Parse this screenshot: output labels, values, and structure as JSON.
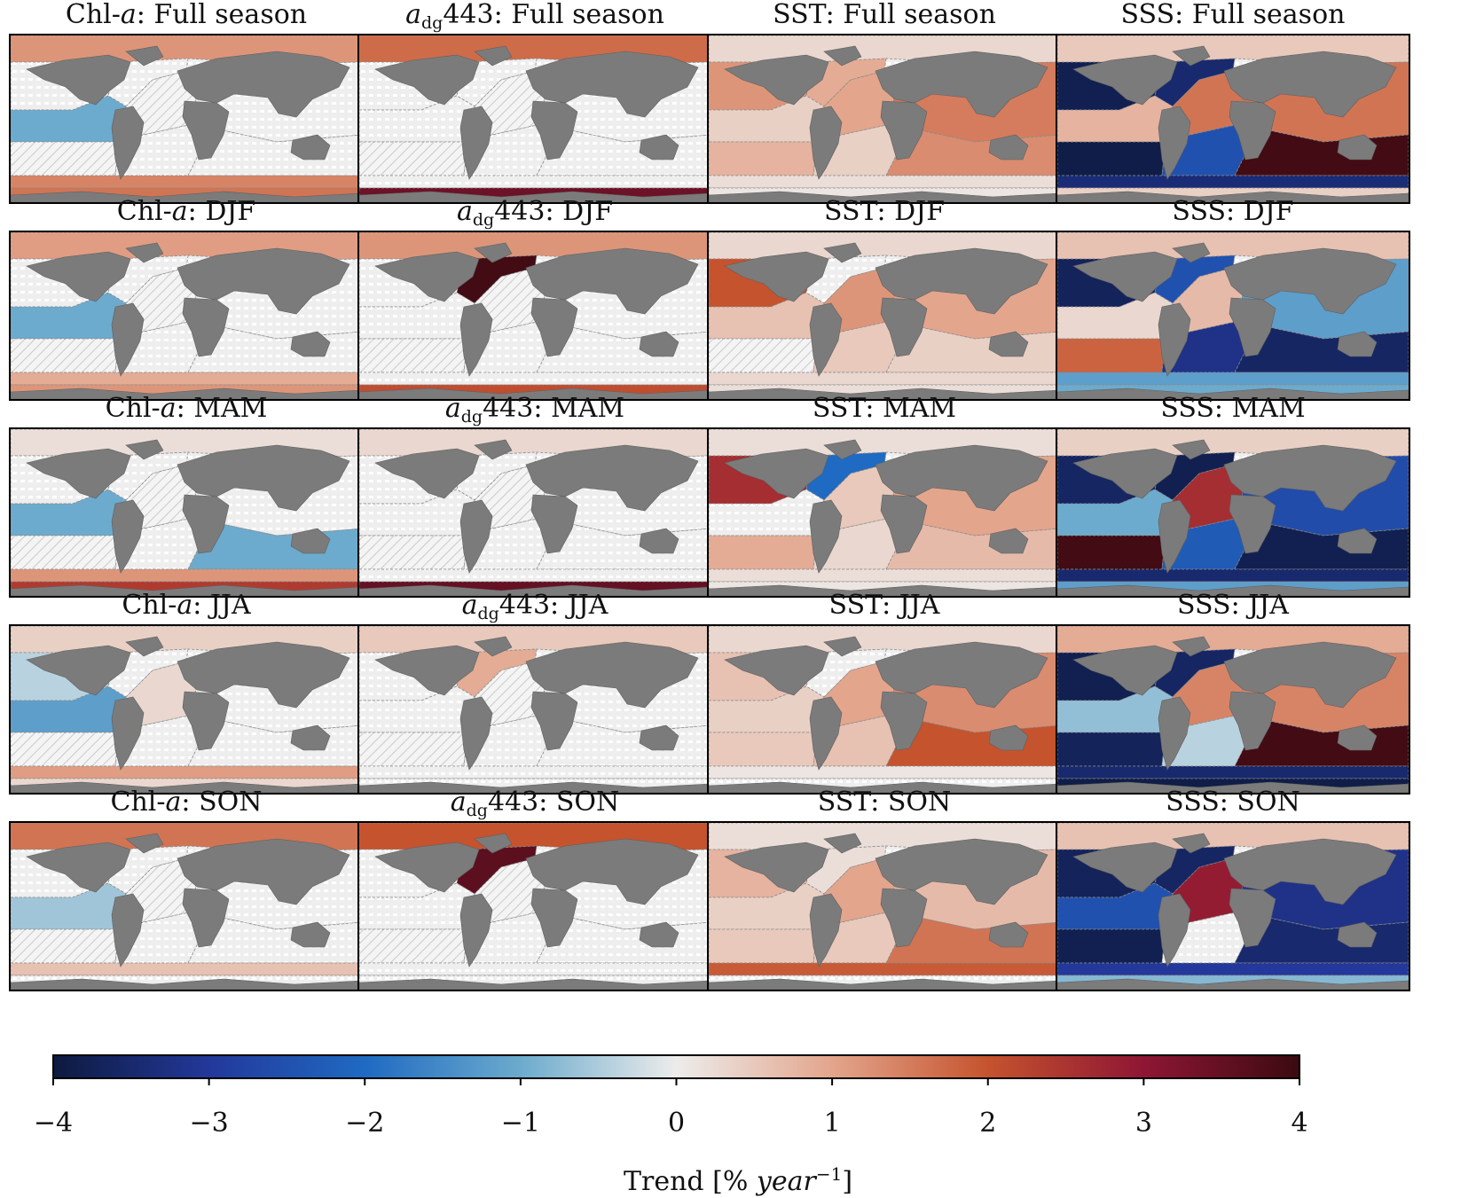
{
  "chart_data": {
    "type": "map-grid",
    "variables": [
      {
        "key": "chl",
        "title_main": "Chl-",
        "title_italic": "a",
        "title_sub": "",
        "title_rest": ""
      },
      {
        "key": "adg",
        "title_main": "",
        "title_italic": "a",
        "title_sub": "dg",
        "title_rest": "443"
      },
      {
        "key": "sst",
        "title_main": "SST",
        "title_italic": "",
        "title_sub": "",
        "title_rest": ""
      },
      {
        "key": "sss",
        "title_main": "SSS",
        "title_italic": "",
        "title_sub": "",
        "title_rest": ""
      }
    ],
    "seasons": [
      "Full season",
      "DJF",
      "MAM",
      "JJA",
      "SON"
    ],
    "panels": [
      {
        "row": 0,
        "col": 0,
        "title": "Chl-a: Full season",
        "regions": {
          "arctic": 1.2,
          "npac": 0,
          "eqpac": -1.0,
          "spac": 0,
          "natl": 0,
          "eqatl": 0,
          "satl": 0,
          "nind": 0,
          "sind": 0,
          "south": 1.4,
          "antarctic": 1.6
        }
      },
      {
        "row": 0,
        "col": 1,
        "title": "adg443: Full season",
        "regions": {
          "arctic": 1.7,
          "npac": 0,
          "eqpac": 0,
          "spac": 0,
          "natl": 0,
          "eqatl": 0,
          "satl": 0,
          "nind": 0,
          "sind": 0,
          "south": 0,
          "antarctic": 3.4
        }
      },
      {
        "row": 0,
        "col": 2,
        "title": "SST: Full season",
        "regions": {
          "arctic": 0.3,
          "npac": 1.2,
          "eqpac": 0.4,
          "spac": 0.8,
          "natl": 0.9,
          "eqatl": 1.0,
          "satl": 0.4,
          "nind": 1.5,
          "sind": 1.3,
          "south": 0.2,
          "antarctic": 0.1
        }
      },
      {
        "row": 0,
        "col": 3,
        "title": "SSS: Full season",
        "regions": {
          "arctic": 0.5,
          "npac": -3.8,
          "eqpac": 0.8,
          "spac": -3.9,
          "natl": -3.5,
          "eqatl": 1.6,
          "satl": -2.5,
          "nind": 1.6,
          "sind": 3.9,
          "south": -3.4,
          "antarctic": 0.4
        }
      },
      {
        "row": 1,
        "col": 0,
        "title": "Chl-a: DJF",
        "regions": {
          "arctic": 1.1,
          "npac": 0,
          "eqpac": -1.0,
          "spac": 0,
          "natl": 0,
          "eqatl": 0,
          "satl": 0,
          "nind": 0,
          "sind": 0,
          "south": 0.9,
          "antarctic": 1.2
        }
      },
      {
        "row": 1,
        "col": 1,
        "title": "adg443: DJF",
        "regions": {
          "arctic": 1.2,
          "npac": 0,
          "eqpac": 0,
          "spac": 0,
          "natl": 3.9,
          "eqatl": 0,
          "satl": 0,
          "nind": 0,
          "sind": 0,
          "south": 0,
          "antarctic": 2.1
        }
      },
      {
        "row": 1,
        "col": 2,
        "title": "SST: DJF",
        "regions": {
          "arctic": 0.3,
          "npac": 2.0,
          "eqpac": 0.6,
          "spac": 0.0,
          "natl": 0.0,
          "eqatl": 1.2,
          "satl": 0.5,
          "nind": 1.0,
          "sind": 0.4,
          "south": 0.3,
          "antarctic": 0.2
        }
      },
      {
        "row": 1,
        "col": 3,
        "title": "SSS: DJF",
        "regions": {
          "arctic": 0.6,
          "npac": -3.7,
          "eqpac": 0.3,
          "spac": 1.8,
          "natl": -2.5,
          "eqatl": 0.7,
          "satl": -3.2,
          "nind": -1.2,
          "sind": -3.6,
          "south": -1.2,
          "antarctic": -1.0
        }
      },
      {
        "row": 2,
        "col": 0,
        "title": "Chl-a: MAM",
        "regions": {
          "arctic": 0.2,
          "npac": 0,
          "eqpac": -1.0,
          "spac": 0,
          "natl": 0,
          "eqatl": 0,
          "satl": 0,
          "nind": 0,
          "sind": -1.0,
          "south": 1.2,
          "antarctic": 2.4
        }
      },
      {
        "row": 2,
        "col": 1,
        "title": "adg443: MAM",
        "regions": {
          "arctic": 0.3,
          "npac": 0,
          "eqpac": 0,
          "spac": 0,
          "natl": 0,
          "eqatl": 0,
          "satl": 0,
          "nind": 0,
          "sind": 0,
          "south": 0,
          "antarctic": 3.5
        }
      },
      {
        "row": 2,
        "col": 2,
        "title": "SST: MAM",
        "regions": {
          "arctic": 0.2,
          "npac": 2.6,
          "eqpac": 0.0,
          "spac": 0.9,
          "natl": -2.0,
          "eqatl": 0.5,
          "satl": 0.3,
          "nind": 1.0,
          "sind": 0.7,
          "south": 0.2,
          "antarctic": 0.1
        }
      },
      {
        "row": 2,
        "col": 3,
        "title": "SSS: MAM",
        "regions": {
          "arctic": 0.4,
          "npac": -3.6,
          "eqpac": -1.0,
          "spac": 3.9,
          "natl": -3.8,
          "eqatl": 2.6,
          "satl": -2.3,
          "nind": -2.6,
          "sind": -3.8,
          "south": -3.5,
          "antarctic": -1.2
        }
      },
      {
        "row": 3,
        "col": 0,
        "title": "Chl-a: JJA",
        "regions": {
          "arctic": 0.4,
          "npac": -0.4,
          "eqpac": -1.2,
          "spac": 0,
          "natl": 0,
          "eqatl": 0.3,
          "satl": 0,
          "nind": 0,
          "sind": 0,
          "south": 1.1,
          "antarctic": 0.3
        }
      },
      {
        "row": 3,
        "col": 1,
        "title": "adg443: JJA",
        "regions": {
          "arctic": 0.5,
          "npac": 0,
          "eqpac": 0,
          "spac": 0,
          "natl": 0.9,
          "eqatl": 0,
          "satl": 0,
          "nind": 0,
          "sind": 0,
          "south": 0,
          "antarctic": 0
        }
      },
      {
        "row": 3,
        "col": 2,
        "title": "SST: JJA",
        "regions": {
          "arctic": 0.3,
          "npac": 0.6,
          "eqpac": 0.4,
          "spac": 0.5,
          "natl": 0.0,
          "eqatl": 1.0,
          "satl": 0.6,
          "nind": 1.3,
          "sind": 2.0,
          "south": 0.1,
          "antarctic": 0.0
        }
      },
      {
        "row": 3,
        "col": 3,
        "title": "SSS: JJA",
        "regions": {
          "arctic": 0.9,
          "npac": -3.8,
          "eqpac": -0.7,
          "spac": -3.7,
          "natl": -3.6,
          "eqatl": 1.4,
          "satl": -0.4,
          "nind": 1.4,
          "sind": 3.9,
          "south": -3.5,
          "antarctic": -3.9
        }
      },
      {
        "row": 4,
        "col": 0,
        "title": "Chl-a: SON",
        "regions": {
          "arctic": 1.6,
          "npac": 0,
          "eqpac": -0.6,
          "spac": 0,
          "natl": 0,
          "eqatl": 0,
          "satl": 0,
          "nind": 0,
          "sind": 0,
          "south": 0.6,
          "antarctic": 0
        }
      },
      {
        "row": 4,
        "col": 1,
        "title": "adg443: SON",
        "regions": {
          "arctic": 2.0,
          "npac": 0,
          "eqpac": 0,
          "spac": 0,
          "natl": 3.6,
          "eqatl": 0,
          "satl": 0,
          "nind": 0,
          "sind": 0,
          "south": 0,
          "antarctic": 0
        }
      },
      {
        "row": 4,
        "col": 2,
        "title": "SST: SON",
        "regions": {
          "arctic": 0.2,
          "npac": 0.8,
          "eqpac": 0.4,
          "spac": 0.5,
          "natl": 0.2,
          "eqatl": 1.0,
          "satl": 0.5,
          "nind": 0.7,
          "sind": 1.6,
          "south": 1.9,
          "antarctic": 0.0
        }
      },
      {
        "row": 4,
        "col": 3,
        "title": "SSS: SON",
        "regions": {
          "arctic": 0.6,
          "npac": -3.7,
          "eqpac": -2.5,
          "spac": -3.8,
          "natl": -3.6,
          "eqatl": 2.9,
          "satl": 0,
          "nind": -3.2,
          "sind": -3.5,
          "south": -3.0,
          "antarctic": -0.8
        }
      }
    ],
    "colorbar": {
      "min": -4,
      "max": 4,
      "ticks": [
        -4,
        -3,
        -2,
        -1,
        0,
        1,
        2,
        3,
        4
      ],
      "tick_labels": [
        "−4",
        "−3",
        "−2",
        "−1",
        "0",
        "1",
        "2",
        "3",
        "4"
      ],
      "label_main": "Trend [% ",
      "label_italic": "year",
      "label_sup": "−1",
      "label_end": "]",
      "colormap": "balance",
      "stops": [
        "#0d1a3f",
        "#23389a",
        "#1f6ac2",
        "#6cabcd",
        "#edeceb",
        "#e3a58c",
        "#c5532e",
        "#8e1634",
        "#3b0a11"
      ]
    },
    "land_color": "#7b7b7b",
    "nonsignificant_color": "#e8e8e8"
  }
}
